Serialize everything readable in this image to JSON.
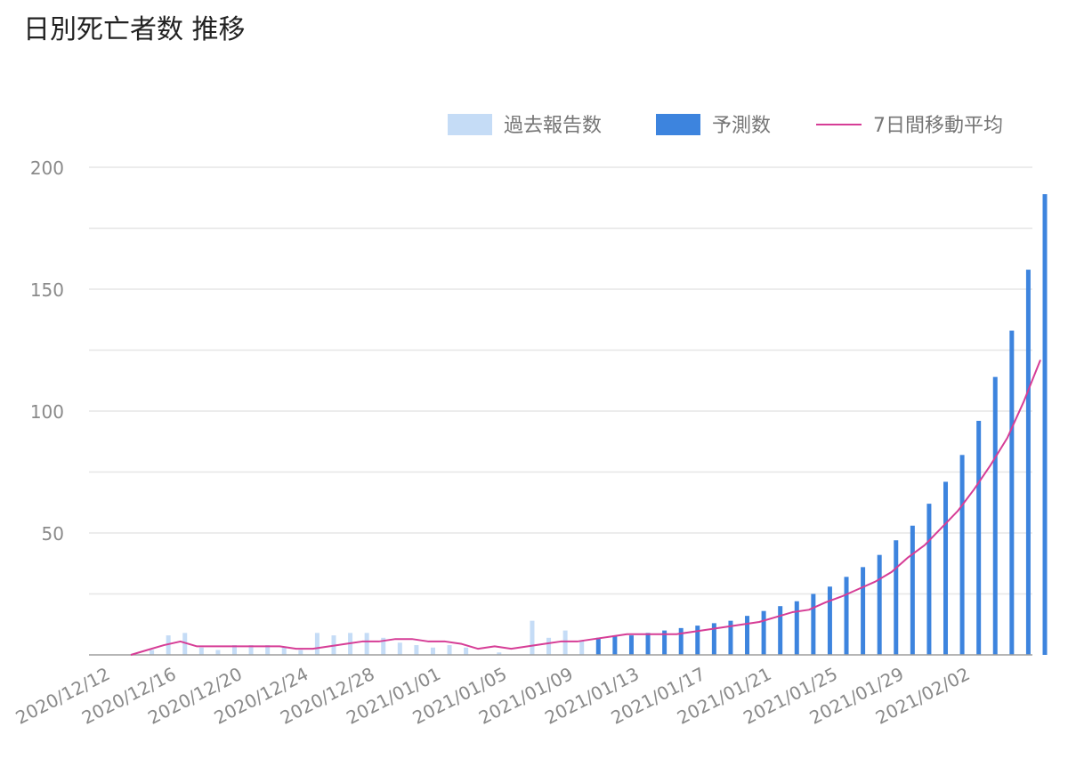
{
  "title": "日別死亡者数 推移",
  "colors": {
    "past": "#c5dcf6",
    "forecast": "#3d84de",
    "average": "#d63d96",
    "grid": "#e6e6e6",
    "axis": "#9e9e9e"
  },
  "chart_data": {
    "type": "bar",
    "title": "日別死亡者数 推移",
    "xlabel": "",
    "ylabel": "",
    "ylim": [
      0,
      200
    ],
    "yticks": [
      50,
      100,
      150,
      200
    ],
    "grid": true,
    "legend_position": "top-right",
    "x": [
      "2020/12/12",
      "2020/12/13",
      "2020/12/14",
      "2020/12/15",
      "2020/12/16",
      "2020/12/17",
      "2020/12/18",
      "2020/12/19",
      "2020/12/20",
      "2020/12/21",
      "2020/12/22",
      "2020/12/23",
      "2020/12/24",
      "2020/12/25",
      "2020/12/26",
      "2020/12/27",
      "2020/12/28",
      "2020/12/29",
      "2020/12/30",
      "2020/12/31",
      "2021/01/01",
      "2021/01/02",
      "2021/01/03",
      "2021/01/04",
      "2021/01/05",
      "2021/01/06",
      "2021/01/07",
      "2021/01/08",
      "2021/01/09",
      "2021/01/10",
      "2021/01/11",
      "2021/01/12",
      "2021/01/13",
      "2021/01/14",
      "2021/01/15",
      "2021/01/16",
      "2021/01/17",
      "2021/01/18",
      "2021/01/19",
      "2021/01/20",
      "2021/01/21",
      "2021/01/22",
      "2021/01/23",
      "2021/01/24",
      "2021/01/25",
      "2021/01/26",
      "2021/01/27",
      "2021/01/28",
      "2021/01/29",
      "2021/01/30",
      "2021/01/31",
      "2021/02/01",
      "2021/02/02",
      "2021/02/03",
      "2021/02/04",
      "2021/02/05"
    ],
    "x_tick_labels": [
      "2020/12/12",
      "2020/12/16",
      "2020/12/20",
      "2020/12/24",
      "2020/12/28",
      "2021/01/01",
      "2021/01/05",
      "2021/01/09",
      "2021/01/13",
      "2021/01/17",
      "2021/01/21",
      "2021/01/25",
      "2021/01/29",
      "2021/02/02"
    ],
    "series": [
      {
        "name": "過去報告数",
        "kind": "bar",
        "values": [
          0,
          2,
          8,
          9,
          3,
          2,
          4,
          4,
          4,
          3,
          2,
          9,
          8,
          9,
          9,
          7,
          5,
          4,
          3,
          4,
          3,
          0,
          1,
          0,
          14,
          7,
          10,
          6,
          null,
          null,
          null,
          null,
          null,
          null,
          null,
          null,
          null,
          null,
          null,
          null,
          null,
          null,
          null,
          null,
          null,
          null,
          null,
          null,
          null,
          null,
          null,
          null,
          null,
          null,
          null,
          null
        ]
      },
      {
        "name": "予測数",
        "kind": "bar",
        "values": [
          null,
          null,
          null,
          null,
          null,
          null,
          null,
          null,
          null,
          null,
          null,
          null,
          null,
          null,
          null,
          null,
          null,
          null,
          null,
          null,
          null,
          null,
          null,
          null,
          null,
          null,
          null,
          null,
          7,
          8,
          8,
          9,
          10,
          11,
          12,
          13,
          14,
          16,
          18,
          20,
          22,
          25,
          28,
          32,
          36,
          41,
          47,
          53,
          62,
          71,
          82,
          96,
          114,
          133,
          158,
          189
        ]
      },
      {
        "name": "7日間移動平均",
        "kind": "line",
        "values": [
          0,
          2,
          4,
          5.5,
          3.5,
          3.5,
          3.5,
          3.5,
          3.5,
          3.5,
          2.5,
          2.5,
          3.5,
          4.5,
          5.5,
          5.5,
          6.5,
          6.5,
          5.5,
          5.5,
          4.5,
          2.5,
          3.5,
          2.5,
          3.5,
          4.5,
          5.5,
          5.5,
          6.5,
          7.5,
          8.5,
          8.5,
          8.5,
          8.5,
          9.5,
          10.5,
          11.5,
          12.5,
          13.5,
          15.5,
          17.5,
          18.5,
          21.5,
          24,
          27,
          30,
          34,
          40,
          45,
          52,
          59,
          68,
          78,
          89,
          104,
          121
        ]
      }
    ]
  }
}
